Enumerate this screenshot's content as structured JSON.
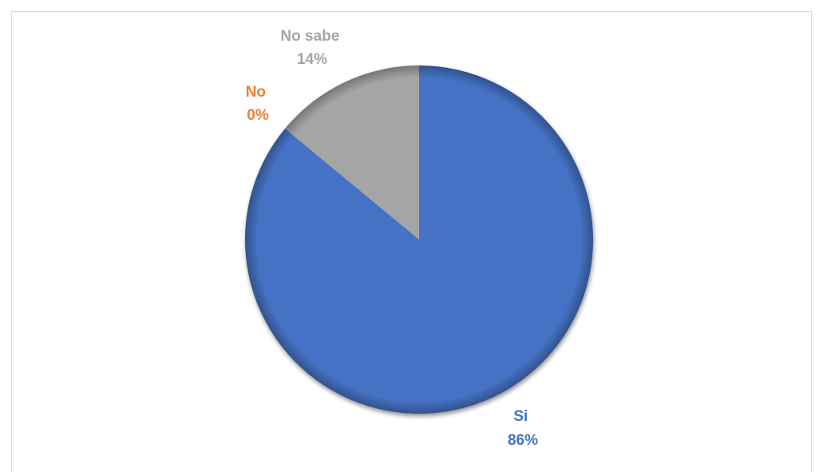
{
  "chart_data": {
    "type": "pie",
    "categories": [
      "Si",
      "No",
      "No sabe"
    ],
    "values": [
      86,
      0,
      14
    ],
    "labels": [
      "Si\n86%",
      "No\n0%",
      "No sabe\n14%"
    ],
    "percent_labels": [
      "86%",
      "0%",
      "14%"
    ],
    "colors": [
      "#4472c4",
      "#ed7d31",
      "#a5a5a5"
    ],
    "start_angle_deg": 0,
    "direction": "clockwise",
    "legend": "none",
    "title": ""
  }
}
